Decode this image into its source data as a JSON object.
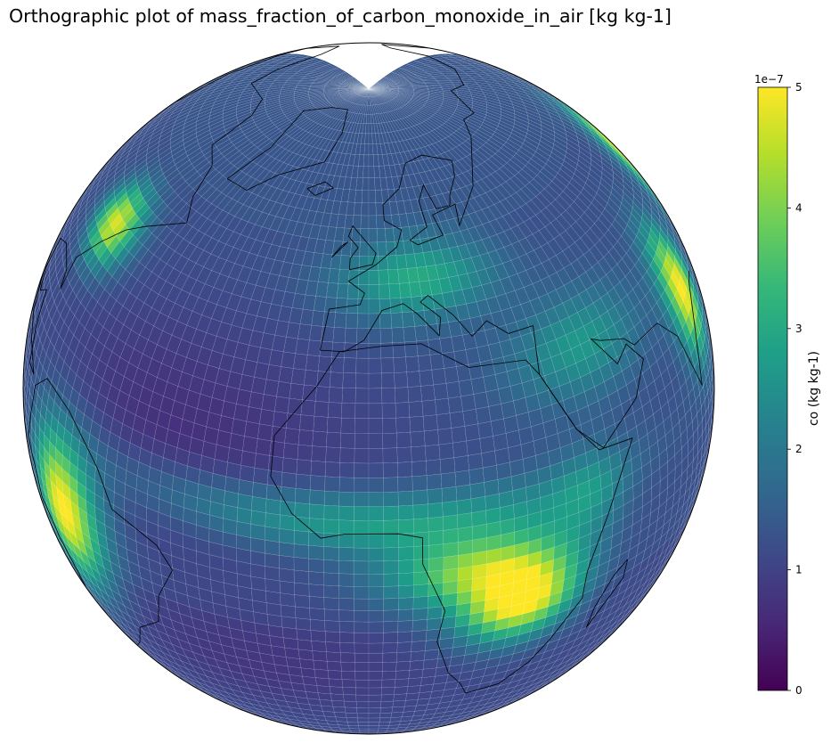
{
  "title": "Orthographic plot of mass_fraction_of_carbon_monoxide_in_air [kg kg-1]",
  "map": {
    "projection": "orthographic",
    "center_lon": 0,
    "center_lat": 30,
    "coastlines": true,
    "grid_mesh": "cubed-sphere cells with light edges",
    "colormap": "viridis"
  },
  "colorbar": {
    "label": "co (kg kg-1)",
    "exponent": "1e−7",
    "vmin": 0,
    "vmax": 5,
    "ticks": [
      "0",
      "1",
      "2",
      "3",
      "4",
      "5"
    ],
    "colors": [
      "#440154",
      "#482878",
      "#3e4989",
      "#31688e",
      "#26828e",
      "#1f9e89",
      "#35b779",
      "#6ece58",
      "#b5de2b",
      "#fde725"
    ]
  },
  "hotspots": [
    {
      "name": "Southern Africa",
      "lon": 27,
      "lat": -12,
      "peak": 5.0
    },
    {
      "name": "Central Africa",
      "lon": 18,
      "lat": -3,
      "peak": 4.0
    },
    {
      "name": "Sahel band",
      "lon": -2,
      "lat": 7,
      "peak": 3.0
    },
    {
      "name": "South America",
      "lon": -63,
      "lat": -8,
      "peak": 5.0
    },
    {
      "name": "Eastern North America",
      "lon": -76,
      "lat": 41,
      "peak": 5.0
    },
    {
      "name": "Europe",
      "lon": 12,
      "lat": 48,
      "peak": 3.0
    },
    {
      "name": "Middle East",
      "lon": 45,
      "lat": 30,
      "peak": 2.8
    },
    {
      "name": "South Asia",
      "lon": 82,
      "lat": 24,
      "peak": 5.0
    },
    {
      "name": "East Asia",
      "lon": 115,
      "lat": 38,
      "peak": 5.0
    }
  ]
}
